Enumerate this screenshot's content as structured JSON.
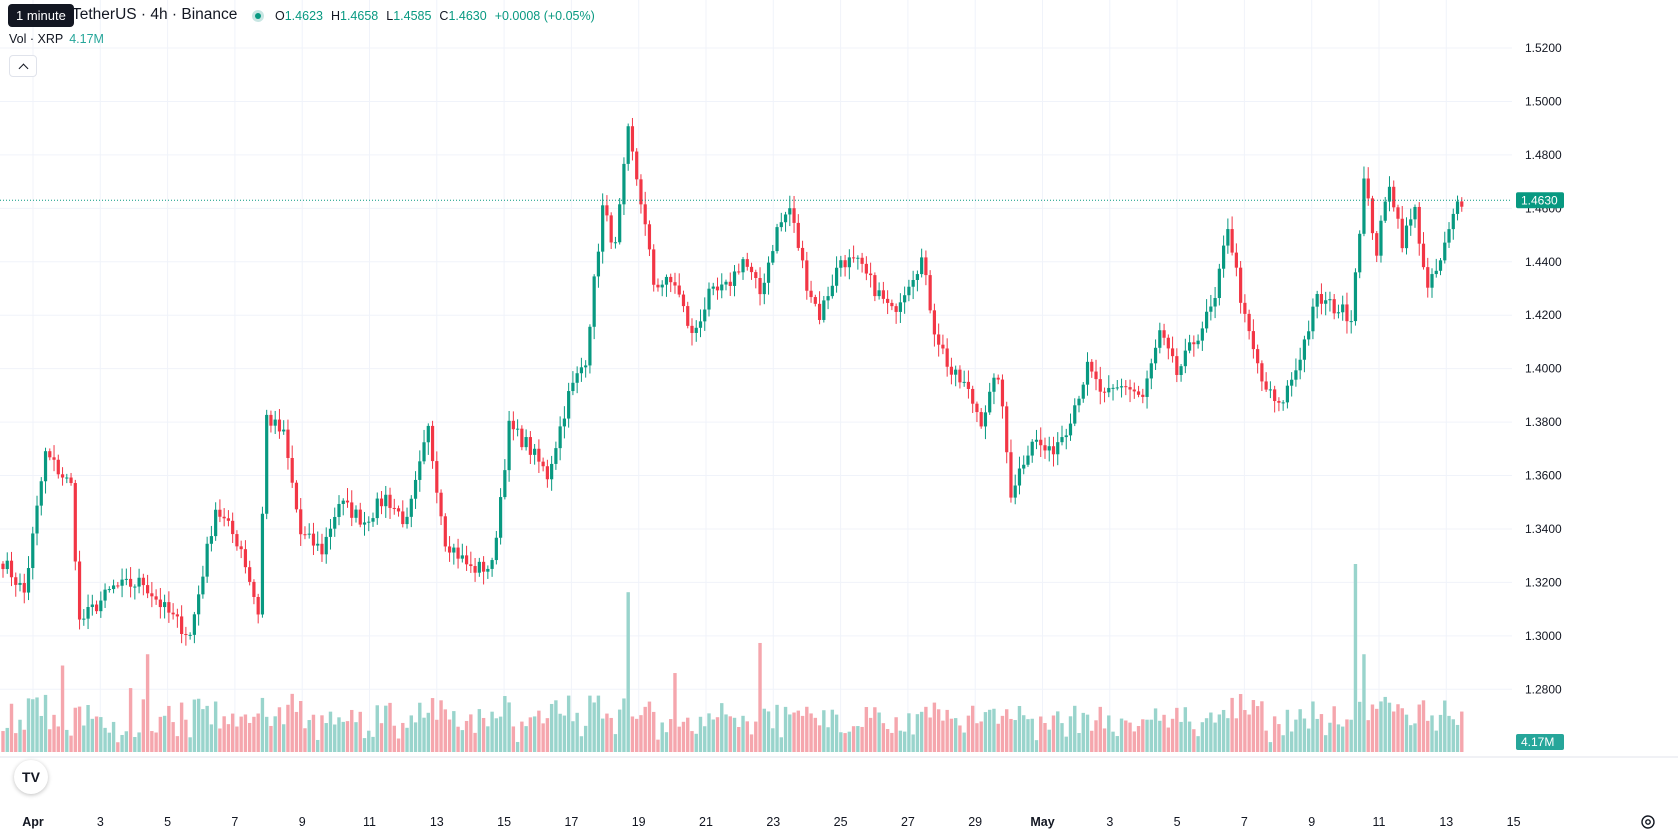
{
  "header": {
    "tooltip": "1 minute",
    "symbol": "TetherUS · 4h · Binance",
    "ohlc": {
      "o_label": "O",
      "o": "1.4623",
      "h_label": "H",
      "h": "1.4658",
      "l_label": "L",
      "l": "1.4585",
      "c_label": "C",
      "c": "1.4630",
      "change": "+0.0008 (+0.05%)"
    },
    "volume_label": "Vol · XRP",
    "volume_value": "4.17M"
  },
  "colors": {
    "up": "#089981",
    "down": "#f23645",
    "vol_up": "#99d4cc",
    "vol_down": "#f5a6ad",
    "price_label": "#089981"
  },
  "icons": {
    "collapse": "chevron-up-icon",
    "logo": "tradingview-logo",
    "settings": "gear-icon"
  },
  "chart_data": {
    "type": "candlestick",
    "yaxis_ticks": [
      "1.5200",
      "1.5000",
      "1.4800",
      "1.4600",
      "1.4400",
      "1.4200",
      "1.4000",
      "1.3800",
      "1.3600",
      "1.3400",
      "1.3200",
      "1.3000",
      "1.2800"
    ],
    "ylim": [
      1.269,
      1.524
    ],
    "xaxis_ticks": [
      "Apr",
      "3",
      "5",
      "7",
      "9",
      "11",
      "13",
      "15",
      "17",
      "19",
      "21",
      "23",
      "25",
      "27",
      "29",
      "May",
      "3",
      "5",
      "7",
      "9",
      "11",
      "13",
      "15"
    ],
    "last_price": "1.4630",
    "last_volume": "4.17M",
    "anchors": [
      [
        0,
        1.328
      ],
      [
        5,
        1.316
      ],
      [
        10,
        1.368
      ],
      [
        16,
        1.356
      ],
      [
        18,
        1.305
      ],
      [
        26,
        1.318
      ],
      [
        33,
        1.32
      ],
      [
        38,
        1.31
      ],
      [
        44,
        1.3
      ],
      [
        50,
        1.348
      ],
      [
        56,
        1.333
      ],
      [
        60,
        1.309
      ],
      [
        62,
        1.382
      ],
      [
        66,
        1.375
      ],
      [
        70,
        1.338
      ],
      [
        75,
        1.332
      ],
      [
        79,
        1.35
      ],
      [
        85,
        1.343
      ],
      [
        90,
        1.352
      ],
      [
        95,
        1.342
      ],
      [
        100,
        1.377
      ],
      [
        104,
        1.336
      ],
      [
        110,
        1.325
      ],
      [
        115,
        1.326
      ],
      [
        119,
        1.378
      ],
      [
        123,
        1.372
      ],
      [
        128,
        1.36
      ],
      [
        133,
        1.39
      ],
      [
        137,
        1.404
      ],
      [
        141,
        1.46
      ],
      [
        144,
        1.445
      ],
      [
        147,
        1.488
      ],
      [
        150,
        1.463
      ],
      [
        153,
        1.432
      ],
      [
        158,
        1.432
      ],
      [
        162,
        1.412
      ],
      [
        166,
        1.427
      ],
      [
        170,
        1.43
      ],
      [
        174,
        1.441
      ],
      [
        178,
        1.428
      ],
      [
        182,
        1.452
      ],
      [
        185,
        1.46
      ],
      [
        189,
        1.432
      ],
      [
        192,
        1.42
      ],
      [
        197,
        1.441
      ],
      [
        201,
        1.439
      ],
      [
        205,
        1.43
      ],
      [
        209,
        1.421
      ],
      [
        213,
        1.433
      ],
      [
        216,
        1.441
      ],
      [
        219,
        1.415
      ],
      [
        223,
        1.398
      ],
      [
        226,
        1.394
      ],
      [
        230,
        1.381
      ],
      [
        234,
        1.398
      ],
      [
        237,
        1.354
      ],
      [
        242,
        1.374
      ],
      [
        246,
        1.368
      ],
      [
        250,
        1.378
      ],
      [
        255,
        1.4
      ],
      [
        259,
        1.389
      ],
      [
        264,
        1.394
      ],
      [
        268,
        1.389
      ],
      [
        272,
        1.413
      ],
      [
        276,
        1.398
      ],
      [
        281,
        1.413
      ],
      [
        285,
        1.425
      ],
      [
        288,
        1.454
      ],
      [
        292,
        1.418
      ],
      [
        296,
        1.395
      ],
      [
        300,
        1.385
      ],
      [
        304,
        1.4
      ],
      [
        309,
        1.426
      ],
      [
        313,
        1.423
      ],
      [
        317,
        1.42
      ],
      [
        320,
        1.47
      ],
      [
        323,
        1.444
      ],
      [
        326,
        1.47
      ],
      [
        329,
        1.448
      ],
      [
        332,
        1.459
      ],
      [
        335,
        1.429
      ],
      [
        338,
        1.44
      ],
      [
        342,
        1.462
      ],
      [
        343,
        1.463
      ]
    ],
    "volume_spikes": [
      [
        14,
        0.46
      ],
      [
        30,
        0.34
      ],
      [
        34,
        0.52
      ],
      [
        33,
        0.28
      ],
      [
        72,
        0.17
      ],
      [
        110,
        0.2
      ],
      [
        126,
        0.22
      ],
      [
        133,
        0.3
      ],
      [
        140,
        0.3
      ],
      [
        147,
        0.85
      ],
      [
        158,
        0.42
      ],
      [
        169,
        0.26
      ],
      [
        178,
        0.58
      ],
      [
        184,
        0.24
      ],
      [
        206,
        0.21
      ],
      [
        233,
        0.23
      ],
      [
        277,
        0.16
      ],
      [
        288,
        0.18
      ],
      [
        318,
        1.0
      ],
      [
        320,
        0.52
      ]
    ]
  }
}
